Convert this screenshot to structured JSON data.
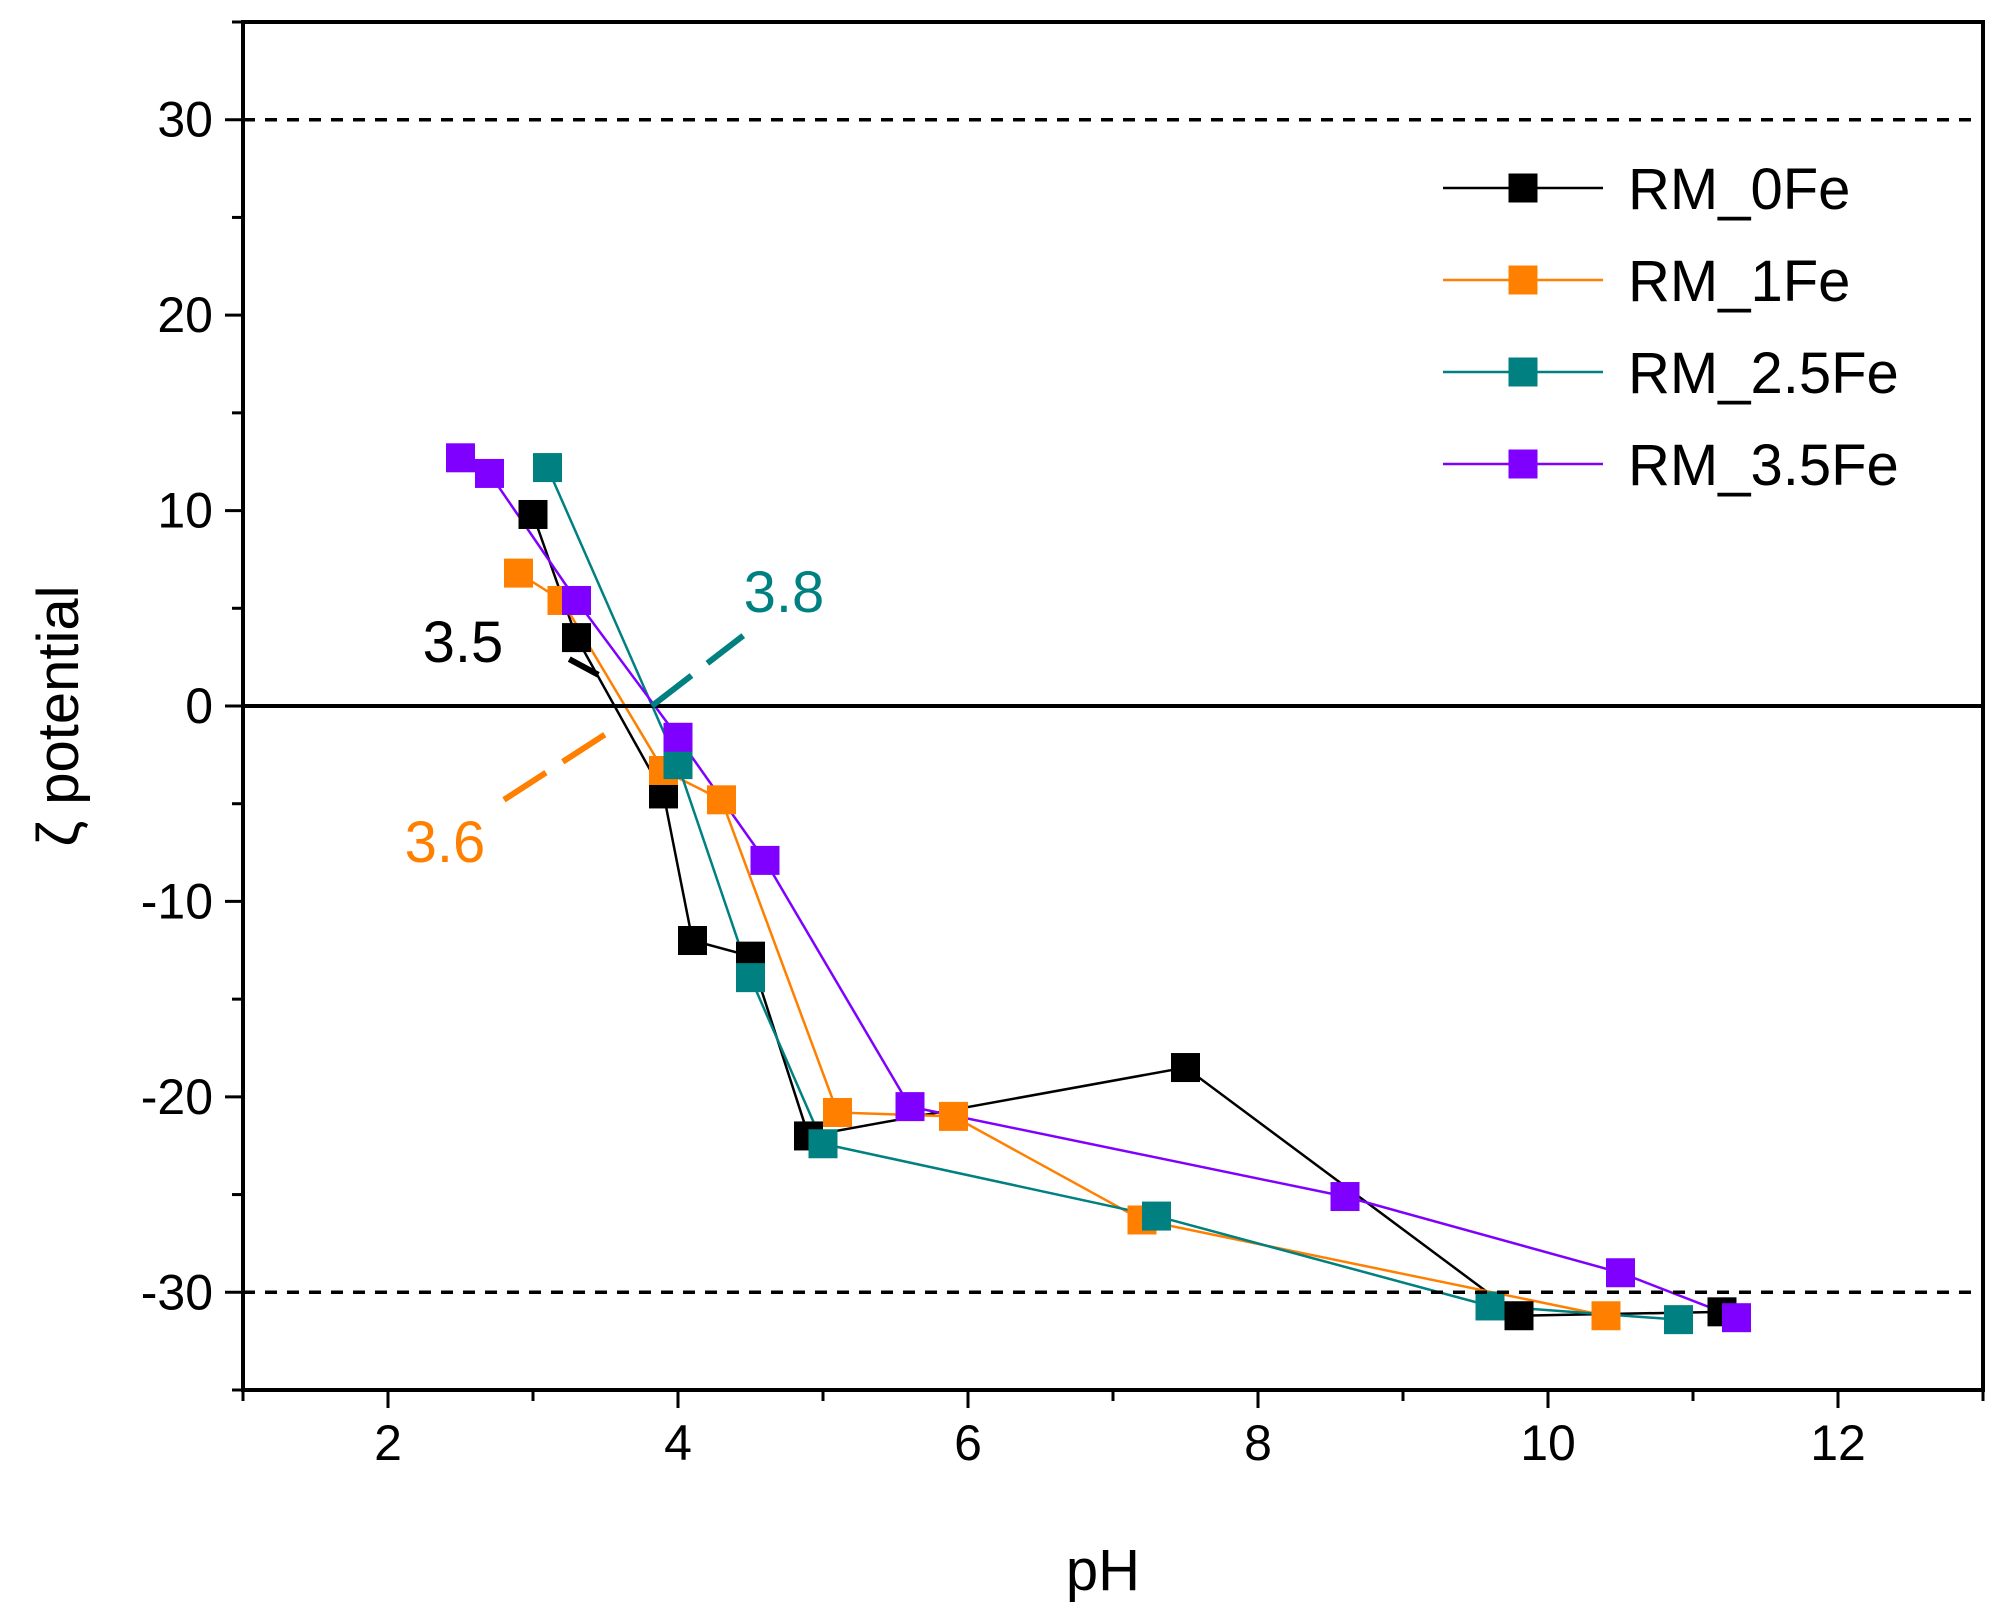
{
  "chart_data": {
    "type": "line",
    "title": "",
    "xlabel": "pH",
    "ylabel": "ζ potential",
    "xlim": [
      1,
      13
    ],
    "ylim": [
      -35,
      35
    ],
    "xticks": [
      2,
      4,
      6,
      8,
      10,
      12
    ],
    "xtick_labels": [
      "2",
      "4",
      "6",
      "8",
      "10",
      "12"
    ],
    "yticks": [
      -30,
      -20,
      -10,
      0,
      10,
      20,
      30
    ],
    "ytick_labels": [
      "-30",
      "-20",
      "-10",
      "0",
      "10",
      "20",
      "30"
    ],
    "reference_lines": [
      {
        "y": 30,
        "style": "dashed",
        "color": "#000000"
      },
      {
        "y": 0,
        "style": "solid",
        "color": "#000000"
      },
      {
        "y": -30,
        "style": "dashed",
        "color": "#000000"
      }
    ],
    "legend_position": "top-right",
    "series": [
      {
        "name": "RM_0Fe",
        "color": "#000000",
        "x": [
          3.0,
          3.3,
          3.9,
          4.1,
          4.5,
          4.9,
          7.5,
          9.8,
          11.2
        ],
        "y": [
          9.8,
          3.5,
          -4.5,
          -12.0,
          -12.8,
          -22.0,
          -18.5,
          -31.2,
          -31.0
        ]
      },
      {
        "name": "RM_1Fe",
        "color": "#ff8000",
        "x": [
          2.9,
          3.2,
          3.9,
          4.3,
          5.1,
          5.9,
          7.2,
          10.4
        ],
        "y": [
          6.8,
          5.4,
          -3.3,
          -4.8,
          -20.8,
          -21.0,
          -26.3,
          -31.2
        ]
      },
      {
        "name": "RM_2.5Fe",
        "color": "#008080",
        "x": [
          3.1,
          4.0,
          4.5,
          5.0,
          7.3,
          9.6,
          10.9
        ],
        "y": [
          12.2,
          -3.0,
          -13.9,
          -22.4,
          -26.1,
          -30.7,
          -31.4
        ]
      },
      {
        "name": "RM_3.5Fe",
        "color": "#8000ff",
        "x": [
          2.5,
          2.7,
          3.3,
          4.0,
          4.6,
          5.6,
          8.6,
          10.5,
          11.3
        ],
        "y": [
          12.7,
          11.9,
          5.4,
          -1.6,
          -7.9,
          -20.5,
          -25.1,
          -29.0,
          -31.3
        ]
      }
    ],
    "annotations": [
      {
        "text": "3.5",
        "color": "#000000"
      },
      {
        "text": "3.6",
        "color": "#ff8000"
      },
      {
        "text": "3.8",
        "color": "#008080"
      }
    ]
  }
}
